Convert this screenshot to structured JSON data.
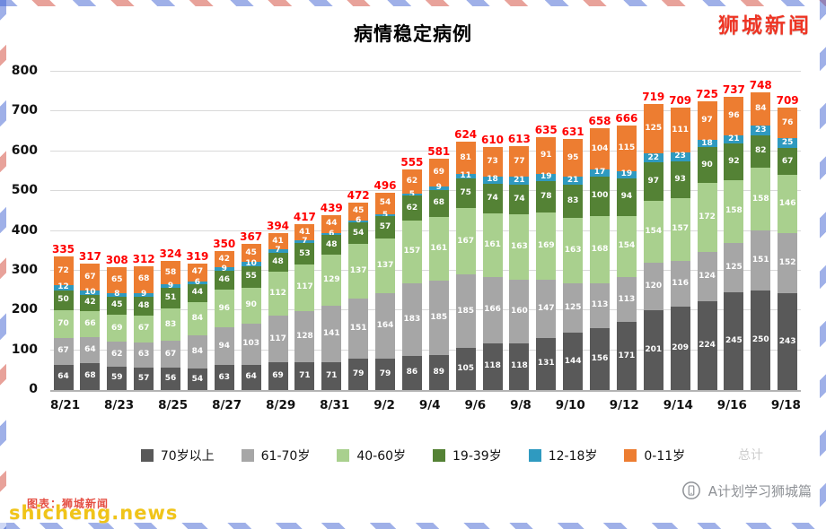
{
  "page": {
    "watermark_top_right": "狮城新闻",
    "watermark_bottom_left_main": "shicheng.news",
    "watermark_bottom_left_sub": "图表：狮城新闻",
    "watermark_bottom_right": "A计划学习狮城篇",
    "faint_label": "总计"
  },
  "colors": {
    "total_label": "#ff0000",
    "grid": "#d9d9d9",
    "watermark_red": "#ee3524",
    "watermark_yellow": "#f0c419",
    "watermark_gray": "#8e9196"
  },
  "chart_data": {
    "type": "bar",
    "stacked": true,
    "title": "病情稳定病例",
    "xlabel": "",
    "ylabel": "",
    "ylim": [
      0,
      800
    ],
    "y_ticks": [
      0,
      100,
      200,
      300,
      400,
      500,
      600,
      700,
      800
    ],
    "grid": true,
    "legend_position": "bottom",
    "x_tick_labels": [
      "8/21",
      "8/23",
      "8/25",
      "8/27",
      "8/29",
      "8/31",
      "9/2",
      "9/4",
      "9/6",
      "9/8",
      "9/10",
      "9/12",
      "9/14",
      "9/16",
      "9/18"
    ],
    "totals": [
      335,
      317,
      308,
      312,
      324,
      319,
      350,
      367,
      394,
      417,
      439,
      472,
      496,
      555,
      581,
      624,
      610,
      613,
      635,
      631,
      658,
      666,
      719,
      709,
      725,
      737,
      748,
      709
    ],
    "total_label_color": "#ff0000",
    "series": [
      {
        "name": "70岁以上",
        "color": "#595959",
        "values": [
          64,
          68,
          59,
          57,
          56,
          54,
          63,
          64,
          69,
          71,
          71,
          79,
          79,
          86,
          89,
          105,
          118,
          118,
          131,
          144,
          156,
          171,
          201,
          209,
          224,
          245,
          250,
          243
        ]
      },
      {
        "name": "61-70岁",
        "color": "#a6a6a6",
        "values": [
          67,
          64,
          62,
          63,
          67,
          84,
          94,
          103,
          117,
          128,
          141,
          151,
          164,
          183,
          185,
          185,
          166,
          160,
          147,
          125,
          113,
          113,
          120,
          116,
          124,
          125,
          151,
          152
        ]
      },
      {
        "name": "40-60岁",
        "color": "#a9d08e",
        "values": [
          70,
          66,
          69,
          67,
          83,
          84,
          96,
          90,
          112,
          117,
          129,
          137,
          137,
          157,
          161,
          167,
          161,
          163,
          169,
          163,
          168,
          154,
          154,
          157,
          172,
          158,
          158,
          146
        ]
      },
      {
        "name": "19-39岁",
        "color": "#548235",
        "values": [
          50,
          42,
          45,
          48,
          51,
          44,
          46,
          55,
          48,
          53,
          48,
          54,
          57,
          62,
          68,
          75,
          74,
          74,
          78,
          83,
          100,
          94,
          97,
          93,
          90,
          92,
          82,
          67
        ]
      },
      {
        "name": "12-18岁",
        "color": "#2f9ac0",
        "values": [
          12,
          10,
          8,
          9,
          9,
          6,
          9,
          10,
          7,
          7,
          6,
          6,
          5,
          5,
          9,
          11,
          18,
          21,
          19,
          21,
          17,
          19,
          22,
          23,
          18,
          21,
          23,
          25
        ]
      },
      {
        "name": "0-11岁",
        "color": "#ed7d31",
        "values": [
          72,
          67,
          65,
          68,
          58,
          47,
          42,
          45,
          41,
          41,
          44,
          45,
          54,
          62,
          69,
          81,
          73,
          77,
          91,
          95,
          104,
          115,
          125,
          111,
          97,
          96,
          84,
          76
        ]
      }
    ]
  }
}
